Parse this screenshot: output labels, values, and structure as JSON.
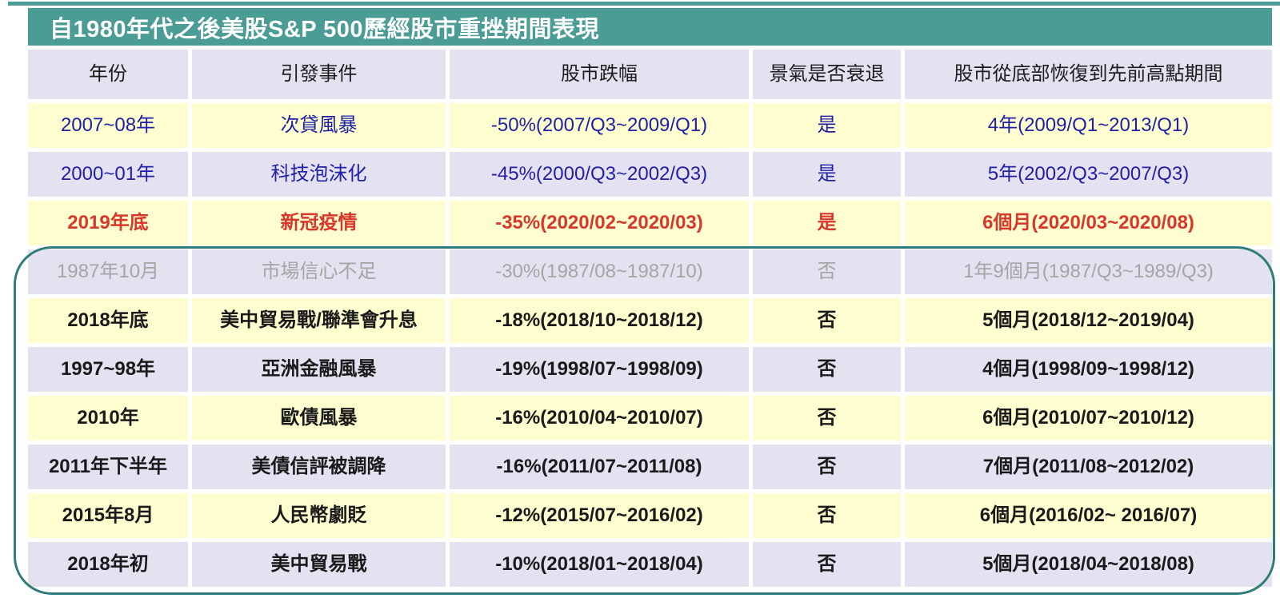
{
  "chart_data": {
    "type": "table",
    "title": "自1980年代之後美股S&P 500歷經股市重挫期間表現",
    "columns": [
      "年份",
      "引發事件",
      "股市跌幅",
      "景氣是否衰退",
      "股市從底部恢復到先前高點期間"
    ],
    "rows": [
      {
        "year": "2007~08年",
        "event": "次貸風暴",
        "drop": "-50%(2007/Q3~2009/Q1)",
        "recession": "是",
        "recovery": "4年(2009/Q1~2013/Q1)",
        "text_style": "blue"
      },
      {
        "year": "2000~01年",
        "event": "科技泡沫化",
        "drop": "-45%(2000/Q3~2002/Q3)",
        "recession": "是",
        "recovery": "5年(2002/Q3~2007/Q3)",
        "text_style": "blue"
      },
      {
        "year": "2019年底",
        "event": "新冠疫情",
        "drop": "-35%(2020/02~2020/03)",
        "recession": "是",
        "recovery": "6個月(2020/03~2020/08)",
        "text_style": "red"
      },
      {
        "year": "1987年10月",
        "event": "市場信心不足",
        "drop": "-30%(1987/08~1987/10)",
        "recession": "否",
        "recovery": "1年9個月(1987/Q3~1989/Q3)",
        "text_style": "gray"
      },
      {
        "year": "2018年底",
        "event": "美中貿易戰/聯準會升息",
        "drop": "-18%(2018/10~2018/12)",
        "recession": "否",
        "recovery": "5個月(2018/12~2019/04)",
        "text_style": "bold"
      },
      {
        "year": "1997~98年",
        "event": "亞洲金融風暴",
        "drop": "-19%(1998/07~1998/09)",
        "recession": "否",
        "recovery": "4個月(1998/09~1998/12)",
        "text_style": "bold"
      },
      {
        "year": "2010年",
        "event": "歐債風暴",
        "drop": "-16%(2010/04~2010/07)",
        "recession": "否",
        "recovery": "6個月(2010/07~2010/12)",
        "text_style": "bold"
      },
      {
        "year": "2011年下半年",
        "event": "美債信評被調降",
        "drop": "-16%(2011/07~2011/08)",
        "recession": "否",
        "recovery": "7個月(2011/08~2012/02)",
        "text_style": "bold"
      },
      {
        "year": "2015年8月",
        "event": "人民幣劇貶",
        "drop": "-12%(2015/07~2016/02)",
        "recession": "否",
        "recovery": "6個月(2016/02~ 2016/07)",
        "text_style": "bold"
      },
      {
        "year": "2018年初",
        "event": "美中貿易戰",
        "drop": "-10%(2018/01~2018/04)",
        "recession": "否",
        "recovery": "5個月(2018/04~2018/08)",
        "text_style": "bold"
      }
    ],
    "layout_hints": {
      "row_background_alternation": [
        "yellow",
        "lavender"
      ],
      "outlined_rows_start_index": 3,
      "outlined_rows_end_index": 9
    }
  },
  "colors": {
    "title_bg": "#4a9c95",
    "row_yellow": "#fdfdcf",
    "row_lavender": "#e4e2f0",
    "header_text": "#1c1c1c",
    "text_blue": "#1f1fa8",
    "text_red": "#d6392b",
    "text_gray": "#a5a5a5",
    "text_dark": "#1a1a1a",
    "outline_border": "#2e7d78"
  }
}
